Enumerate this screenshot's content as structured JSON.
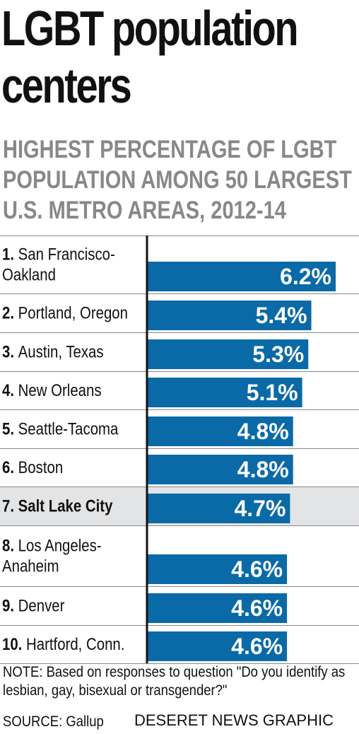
{
  "chart_data": {
    "type": "bar",
    "orientation": "horizontal",
    "title": "LGBT population centers",
    "subtitle": "HIGHEST PERCENTAGE OF LGBT POPULATION AMONG 50 LARGEST U.S. METRO AREAS, 2012-14",
    "categories": [
      {
        "rank": "1.",
        "name": "San Francisco-Oakland",
        "lines": [
          "San Francisco-",
          "Oakland"
        ]
      },
      {
        "rank": "2.",
        "name": "Portland, Oregon",
        "lines": [
          "Portland, Oregon"
        ]
      },
      {
        "rank": "3.",
        "name": "Austin, Texas",
        "lines": [
          "Austin, Texas"
        ]
      },
      {
        "rank": "4.",
        "name": "New Orleans",
        "lines": [
          "New Orleans"
        ]
      },
      {
        "rank": "5.",
        "name": "Seattle-Tacoma",
        "lines": [
          "Seattle-Tacoma"
        ]
      },
      {
        "rank": "6.",
        "name": "Boston",
        "lines": [
          "Boston"
        ]
      },
      {
        "rank": "7.",
        "name": "Salt Lake City",
        "lines": [
          "Salt Lake City"
        ],
        "highlight": true
      },
      {
        "rank": "8.",
        "name": "Los Angeles-Anaheim",
        "lines": [
          "Los Angeles-",
          "Anaheim"
        ]
      },
      {
        "rank": "9.",
        "name": "Denver",
        "lines": [
          "Denver"
        ]
      },
      {
        "rank": "10.",
        "name": "Hartford, Conn.",
        "lines": [
          "Hartford, Conn."
        ]
      }
    ],
    "values": [
      6.2,
      5.4,
      5.3,
      5.1,
      4.8,
      4.8,
      4.7,
      4.6,
      4.6,
      4.6
    ],
    "value_labels": [
      "6.2%",
      "5.4%",
      "5.3%",
      "5.1%",
      "4.8%",
      "4.8%",
      "4.7%",
      "4.6%",
      "4.6%",
      "4.6%"
    ],
    "unit": "%",
    "xlim": [
      0,
      6.2
    ],
    "grid": false,
    "colors": {
      "bar": "#0a6aa8",
      "highlight_row": "#e3e4e6",
      "row_rule": "#888888",
      "axis": "#111111"
    }
  },
  "note": "NOTE: Based on responses to question \"Do you identify as lesbian, gay, bisexual or transgender?\"",
  "source": "SOURCE: Gallup",
  "credit": "DESERET NEWS GRAPHIC"
}
